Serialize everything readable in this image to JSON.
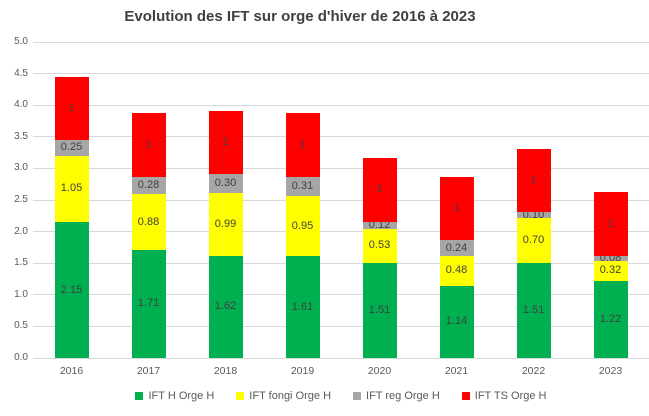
{
  "chart_data": {
    "type": "bar",
    "stacked": true,
    "title": "Evolution des IFT sur orge d'hiver de 2016 à 2023",
    "categories": [
      "2016",
      "2017",
      "2018",
      "2019",
      "2020",
      "2021",
      "2022",
      "2023"
    ],
    "series": [
      {
        "name": "IFT H Orge H",
        "color": "#00b050",
        "values": [
          2.15,
          1.71,
          1.62,
          1.61,
          1.51,
          1.14,
          1.51,
          1.22
        ],
        "labels": [
          "2.15",
          "1.71",
          "1.62",
          "1.61",
          "1.51",
          "1.14",
          "1.51",
          "1.22"
        ]
      },
      {
        "name": "IFT fongi Orge H",
        "color": "#ffff00",
        "values": [
          1.05,
          0.88,
          0.99,
          0.95,
          0.53,
          0.48,
          0.7,
          0.32
        ],
        "labels": [
          "1.05",
          "0.88",
          "0.99",
          "0.95",
          "0.53",
          "0.48",
          "0.70",
          "0.32"
        ]
      },
      {
        "name": "IFT reg Orge H",
        "color": "#a6a6a6",
        "values": [
          0.25,
          0.28,
          0.3,
          0.31,
          0.12,
          0.24,
          0.1,
          0.08
        ],
        "labels": [
          "0.25",
          "0.28",
          "0.30",
          "0.31",
          "0.12",
          "0.24",
          "0.10",
          "0.08"
        ]
      },
      {
        "name": "IFT TS Orge H",
        "color": "#ff0000",
        "values": [
          1,
          1,
          1,
          1,
          1,
          1,
          1,
          1
        ],
        "labels": [
          "1",
          "1",
          "1",
          "1",
          "1",
          "1",
          "1",
          "1"
        ]
      }
    ],
    "ylim": [
      0,
      5
    ],
    "ytick_step": 0.5,
    "yticks": [
      "0.0",
      "0.5",
      "1.0",
      "1.5",
      "2.0",
      "2.5",
      "3.0",
      "3.5",
      "4.0",
      "4.5",
      "5.0"
    ],
    "grid": true,
    "legend_position": "bottom",
    "colors": {
      "gridline": "#d9d9d9",
      "axis_text": "#595959",
      "title_text": "#404040",
      "data_label_text": "#404040",
      "background": "#ffffff"
    }
  }
}
